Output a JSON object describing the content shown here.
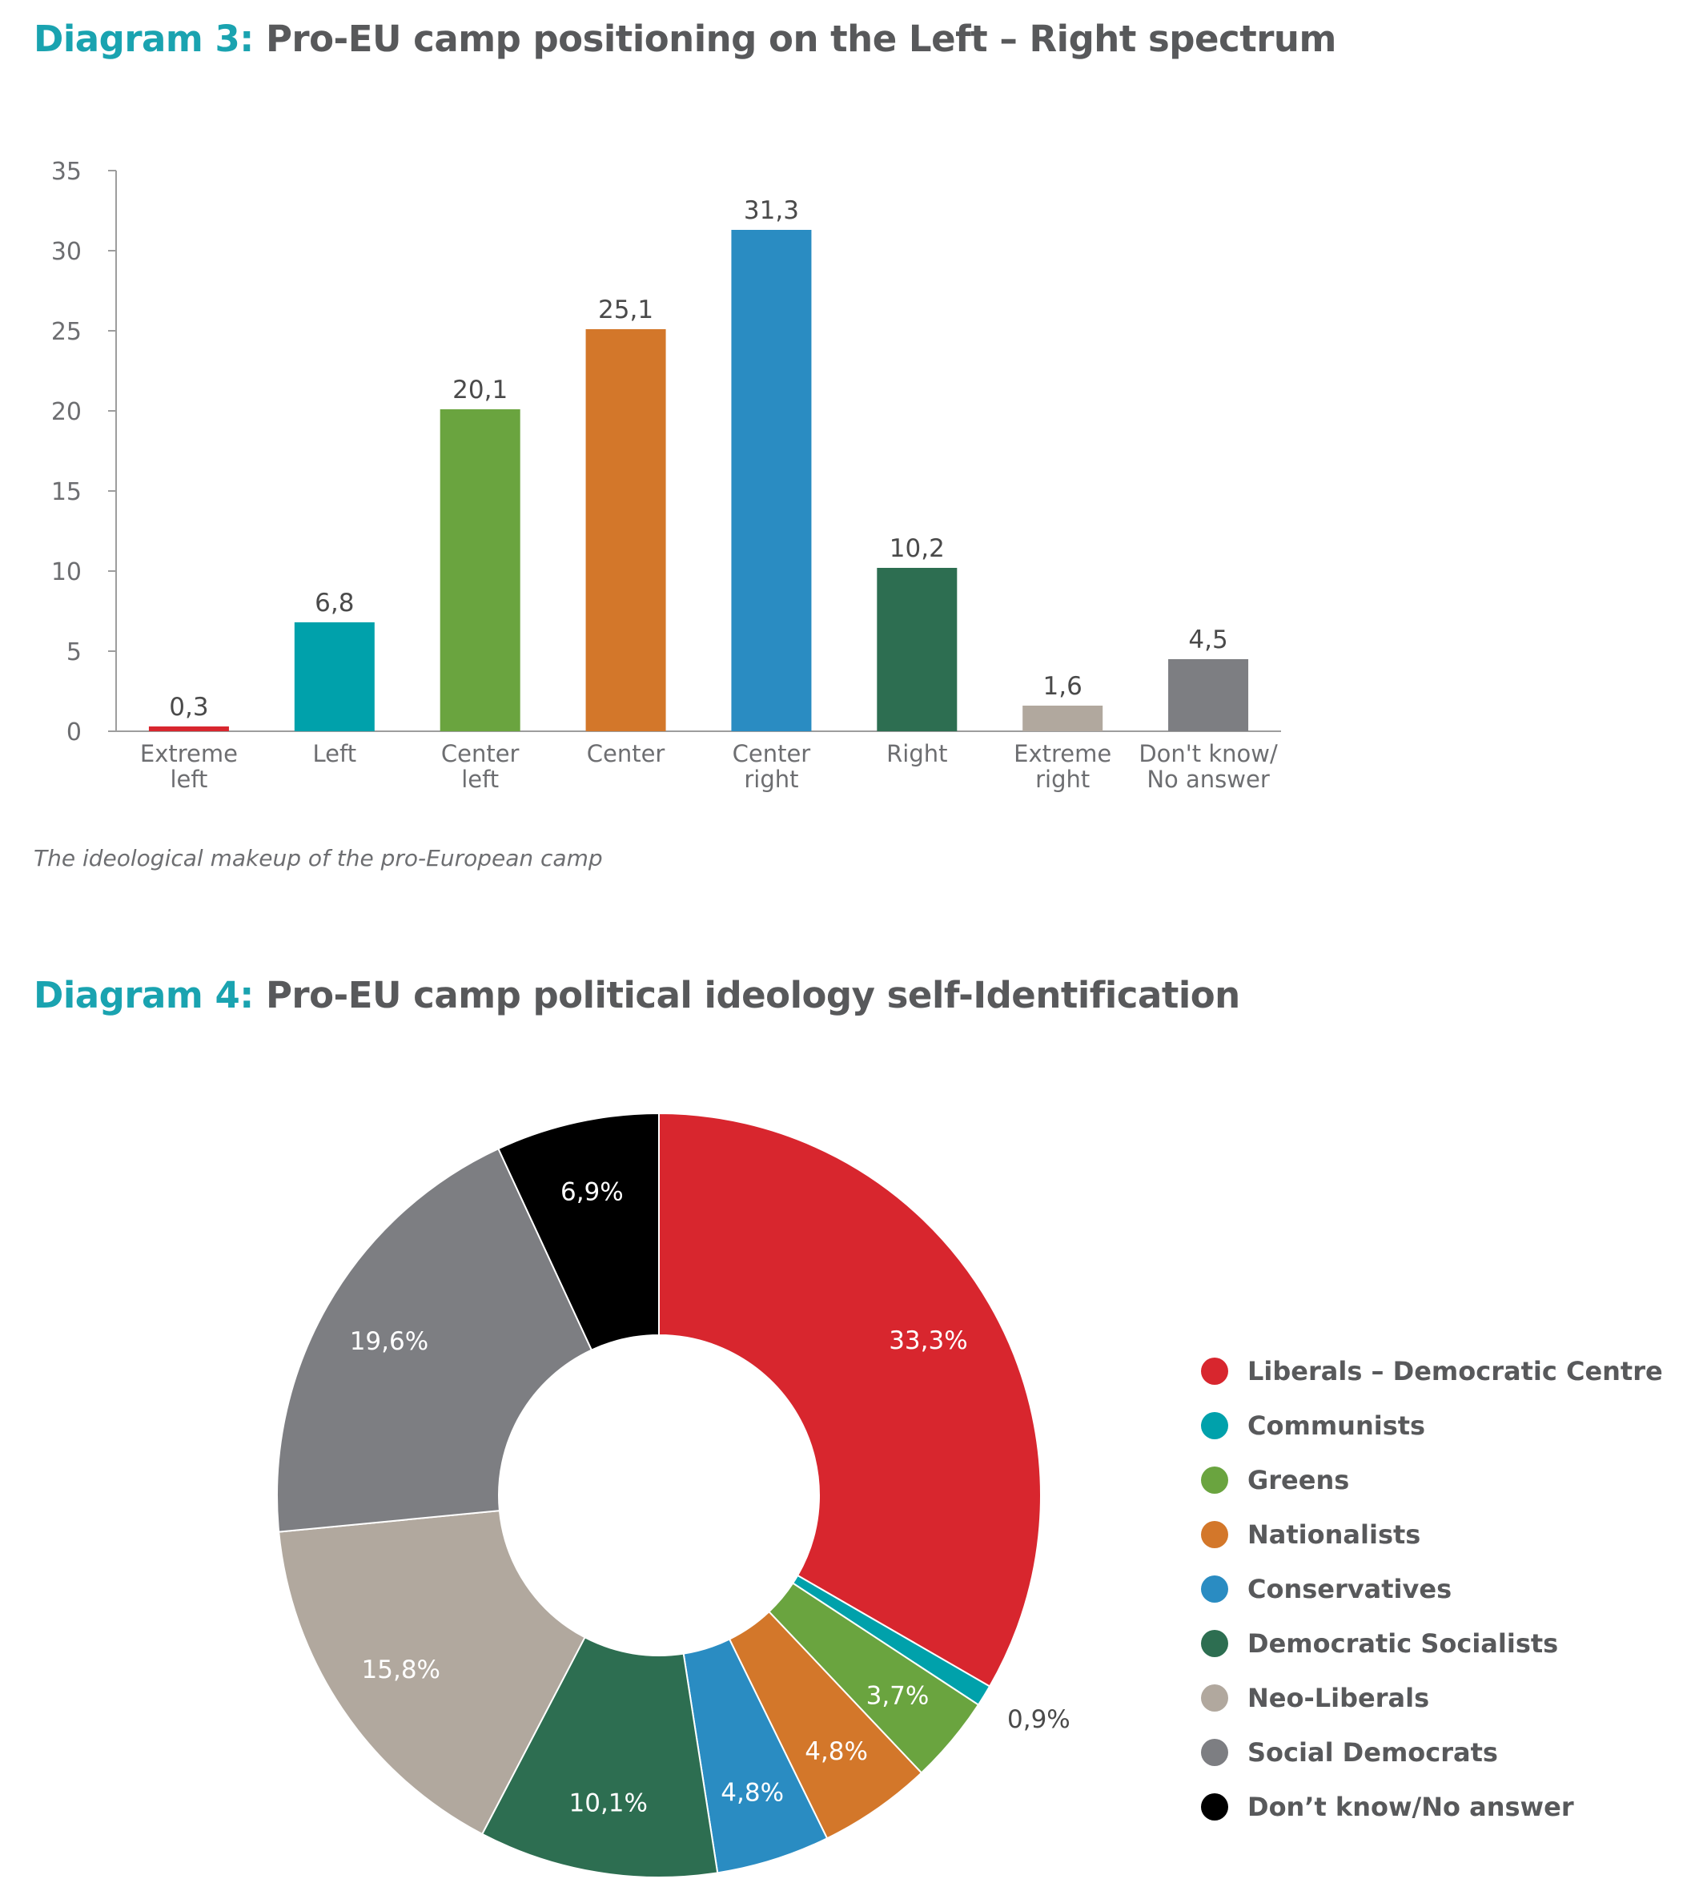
{
  "diagram3": {
    "number": "Diagram 3:",
    "title": "Pro-EU camp positioning on the Left – Right spectrum",
    "caption": "The ideological makeup of the pro-European camp"
  },
  "diagram4": {
    "number": "Diagram 4:",
    "title": "Pro-EU camp political ideology self-Identification"
  },
  "chart_data": [
    {
      "type": "bar",
      "categories": [
        "Extreme\nleft",
        "Left",
        "Center\nleft",
        "Center",
        "Center\nright",
        "Right",
        "Extreme\nright",
        "Don't know/\nNo answer"
      ],
      "values": [
        0.3,
        6.8,
        20.1,
        25.1,
        31.3,
        10.2,
        1.6,
        4.5
      ],
      "value_labels": [
        "0,3",
        "6,8",
        "20,1",
        "25,1",
        "31,3",
        "10,2",
        "1,6",
        "4,5"
      ],
      "colors": [
        "#d8262e",
        "#00a1ab",
        "#6aa43f",
        "#d3772a",
        "#2a8cc2",
        "#2d6e51",
        "#b1a89e",
        "#7d7e82"
      ],
      "yticks": [
        0,
        5,
        10,
        15,
        20,
        25,
        30,
        35
      ],
      "ylim": [
        0,
        35
      ],
      "xlabel": "",
      "ylabel": "",
      "grid": false
    },
    {
      "type": "pie",
      "donut": true,
      "labels": [
        "Liberals – Democratic Centre",
        "Communists",
        "Greens",
        "Nationalists",
        "Conservatives",
        "Democratic Socialists",
        "Neo-Liberals",
        "Social Democrats",
        "Don’t know/No answer"
      ],
      "values": [
        33.3,
        0.9,
        3.7,
        4.8,
        4.8,
        10.1,
        15.8,
        19.6,
        6.9
      ],
      "value_labels": [
        "33,3%",
        "0,9%",
        "3,7%",
        "4,8%",
        "4,8%",
        "10,1%",
        "15,8%",
        "19,6%",
        "6,9%"
      ],
      "colors": [
        "#d8262e",
        "#00a1ab",
        "#6aa43f",
        "#d3772a",
        "#2a8cc2",
        "#2d6e51",
        "#b1a89e",
        "#7d7e82",
        "#000000"
      ],
      "legend_position": "right"
    }
  ]
}
